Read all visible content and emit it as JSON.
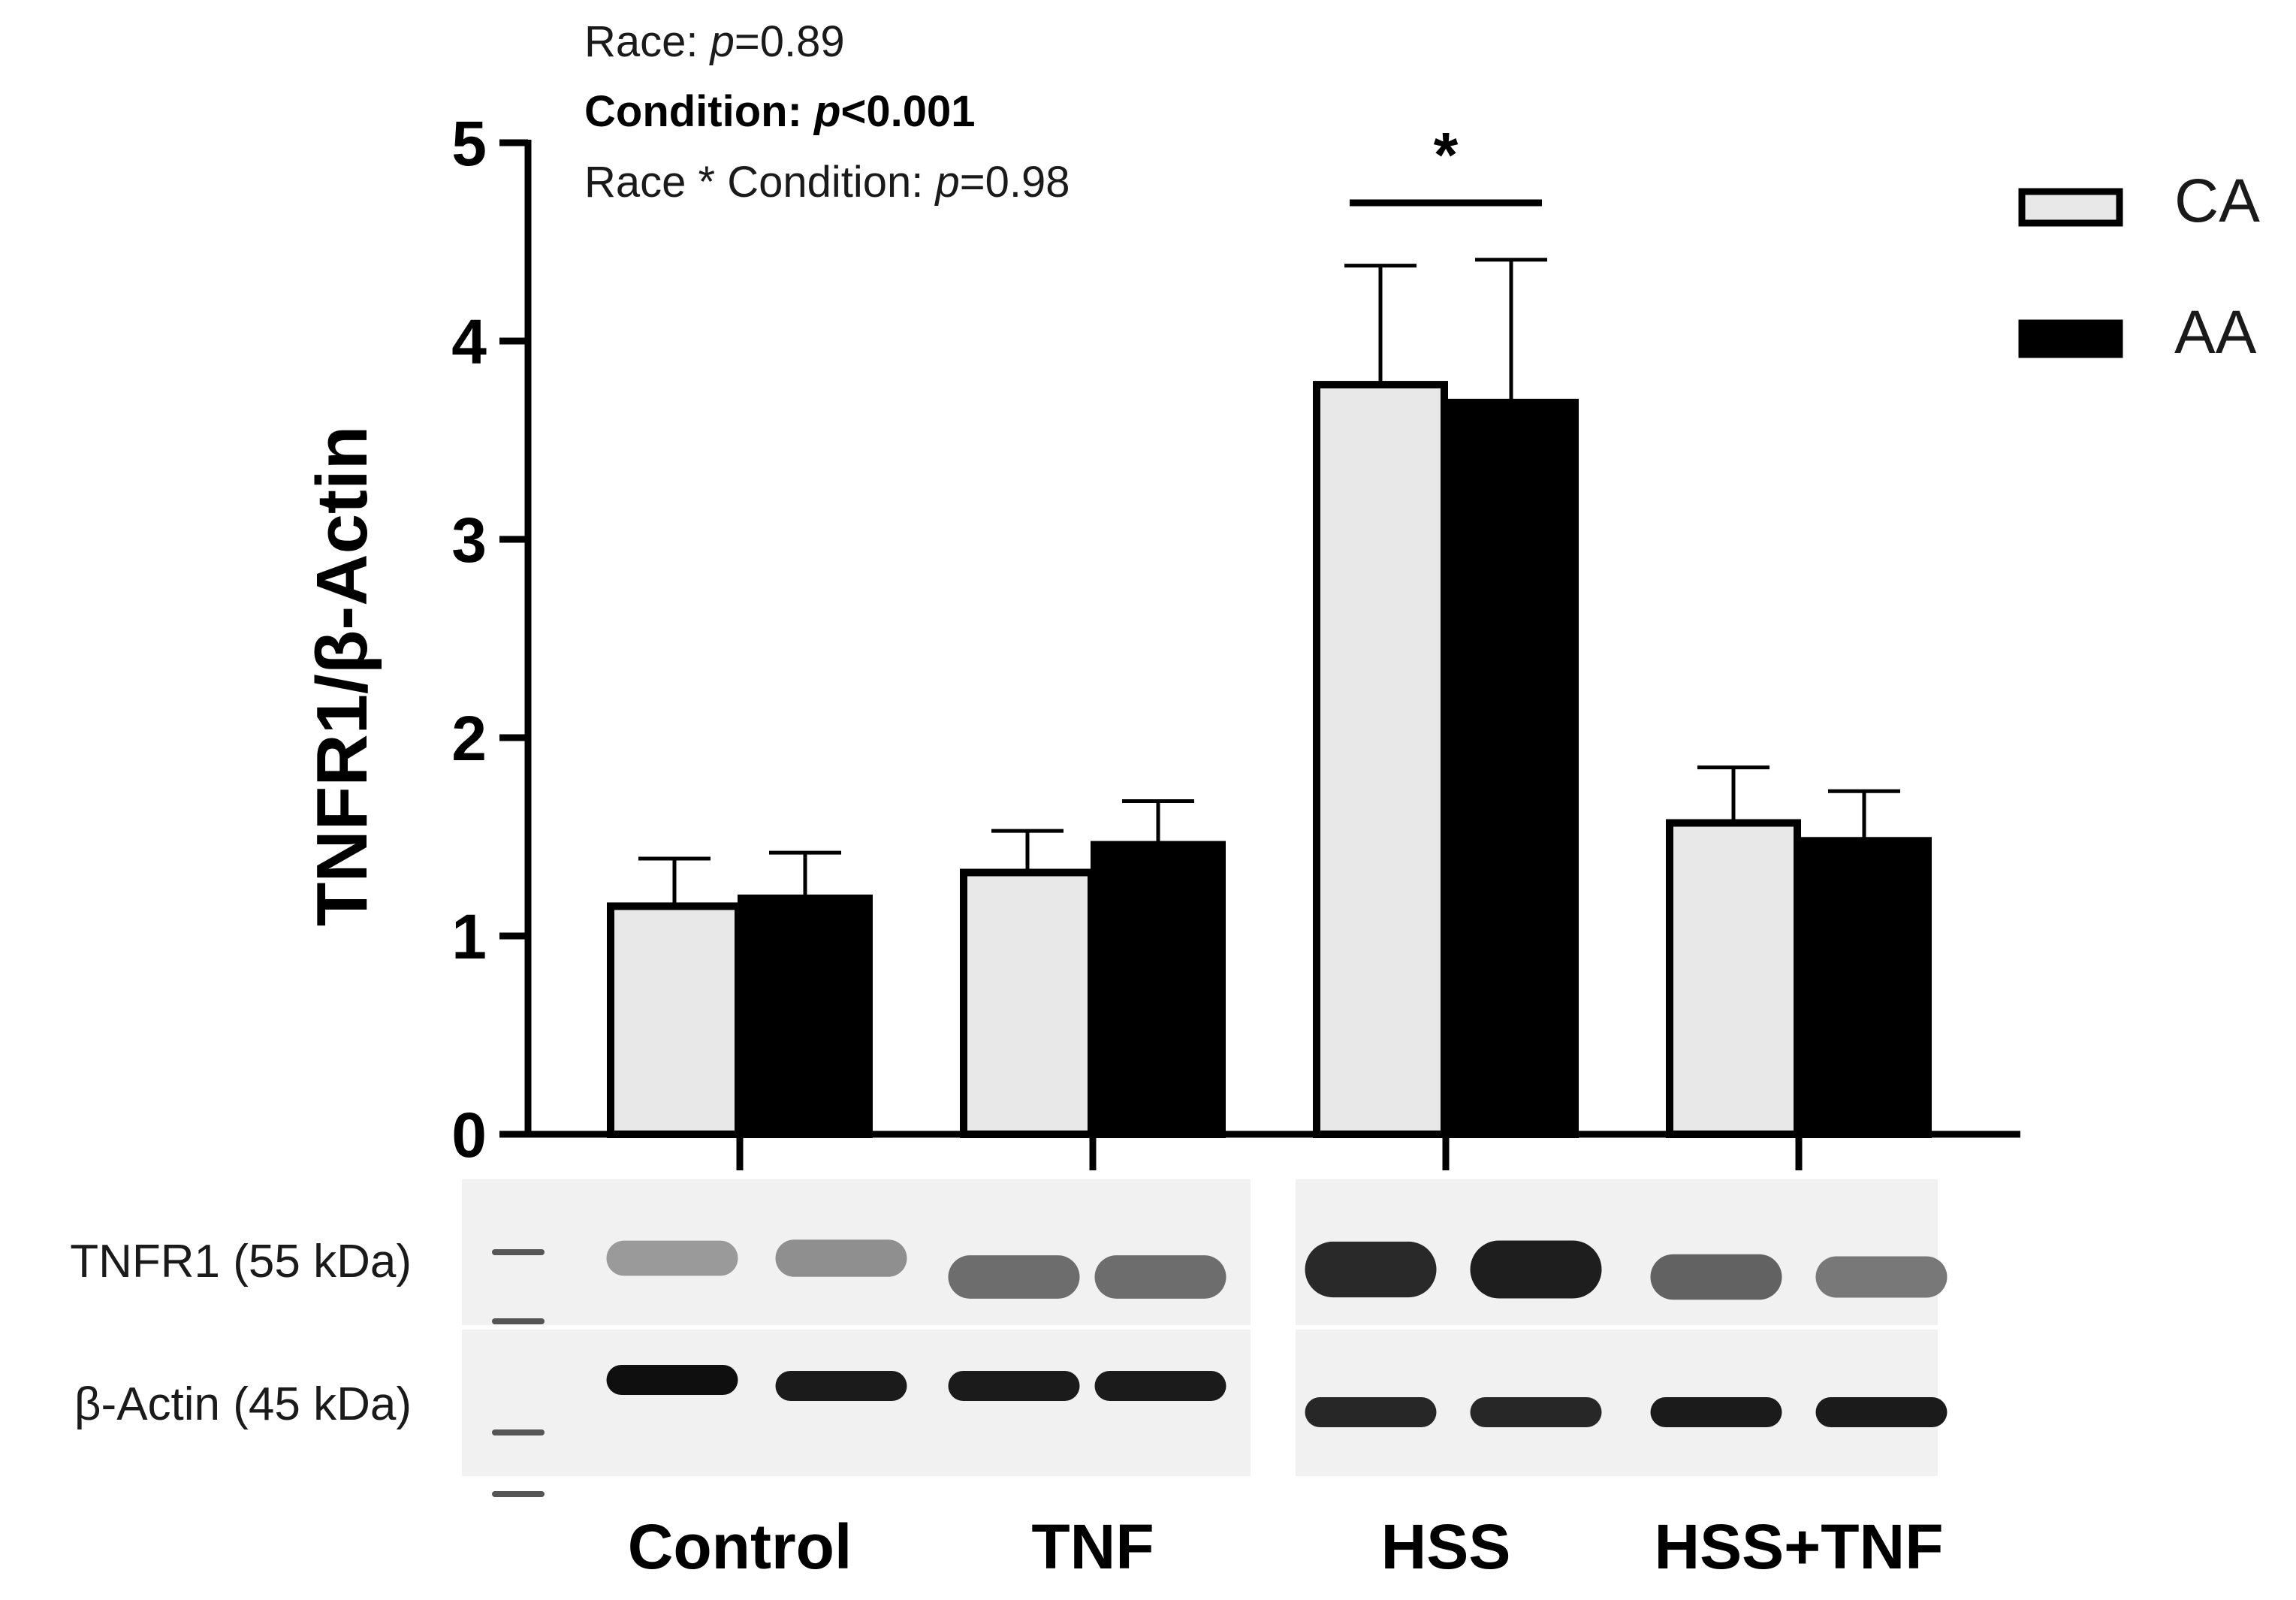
{
  "stats": {
    "race_label": "Race: ",
    "race_p": "p",
    "race_value": "=0.89",
    "condition_label": "Condition: ",
    "condition_p": "p",
    "condition_value": "<0.001",
    "interaction_label": "Race * Condition: ",
    "interaction_p": "p",
    "interaction_value": "=0.98"
  },
  "significance": {
    "marker": "*",
    "category": "HSS"
  },
  "blot": {
    "row1_label": "TNFR1 (55 kDa)",
    "row2_label": "β-Actin (45 kDa)",
    "row1_intensity": [
      0.45,
      0.5,
      0.65,
      0.65,
      0.95,
      1.0,
      0.7,
      0.6
    ],
    "row2_intensity": [
      1.0,
      0.95,
      0.95,
      0.95,
      0.9,
      0.9,
      0.95,
      0.95
    ]
  },
  "colors": {
    "CA": "#e8e8e8",
    "AA": "#000000"
  },
  "chart_data": {
    "type": "bar",
    "categories": [
      "Control",
      "TNF",
      "HSS",
      "HSS+TNF"
    ],
    "series": [
      {
        "name": "CA",
        "values": [
          1.15,
          1.32,
          3.78,
          1.57
        ],
        "errors": [
          0.24,
          0.21,
          0.6,
          0.28
        ]
      },
      {
        "name": "AA",
        "values": [
          1.19,
          1.46,
          3.69,
          1.48
        ],
        "errors": [
          0.23,
          0.22,
          0.72,
          0.25
        ]
      }
    ],
    "ylabel": "TNFR1/β-Actin",
    "xlabel": "",
    "ylim": [
      0,
      5
    ],
    "yticks": [
      0,
      1,
      2,
      3,
      4,
      5
    ],
    "legend": "top-right",
    "grid": false
  }
}
